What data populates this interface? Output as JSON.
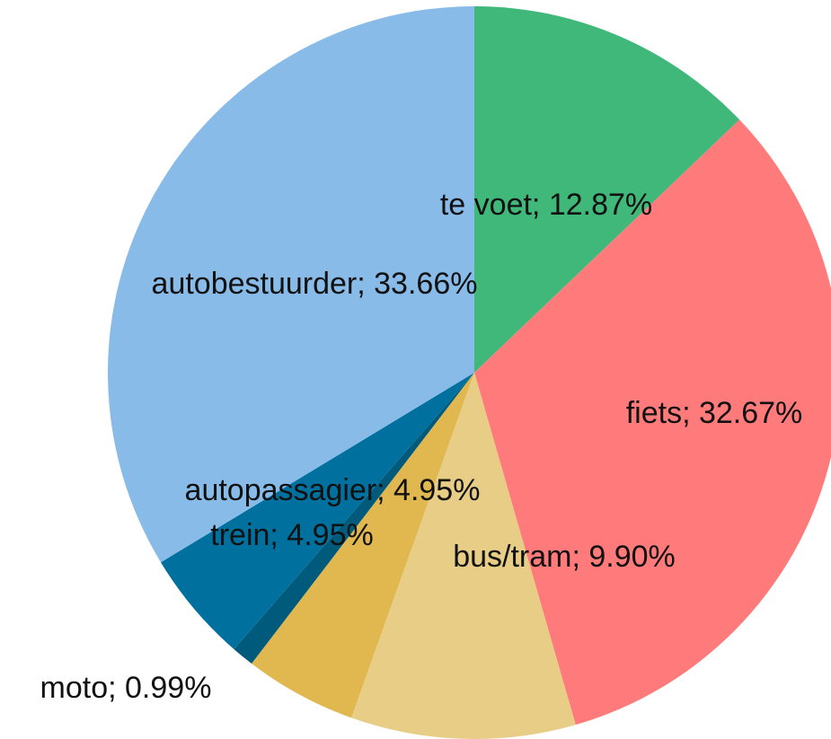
{
  "chart_data": {
    "type": "pie",
    "labels": [
      "te voet; 12.87%",
      "fiets; 32.67%",
      "bus/tram; 9.90%",
      "trein; 4.95%",
      "moto; 0.99%",
      "autopassagier; 4.95%",
      "autobestuurder; 33.66%"
    ],
    "values": [
      12.87,
      32.67,
      9.9,
      4.95,
      0.99,
      4.95,
      33.66
    ],
    "colors": [
      "#3fb87a",
      "#ff7b7b",
      "#e8cd87",
      "#e0b84f",
      "#005a7c",
      "#00709e",
      "#88bbe8"
    ]
  }
}
